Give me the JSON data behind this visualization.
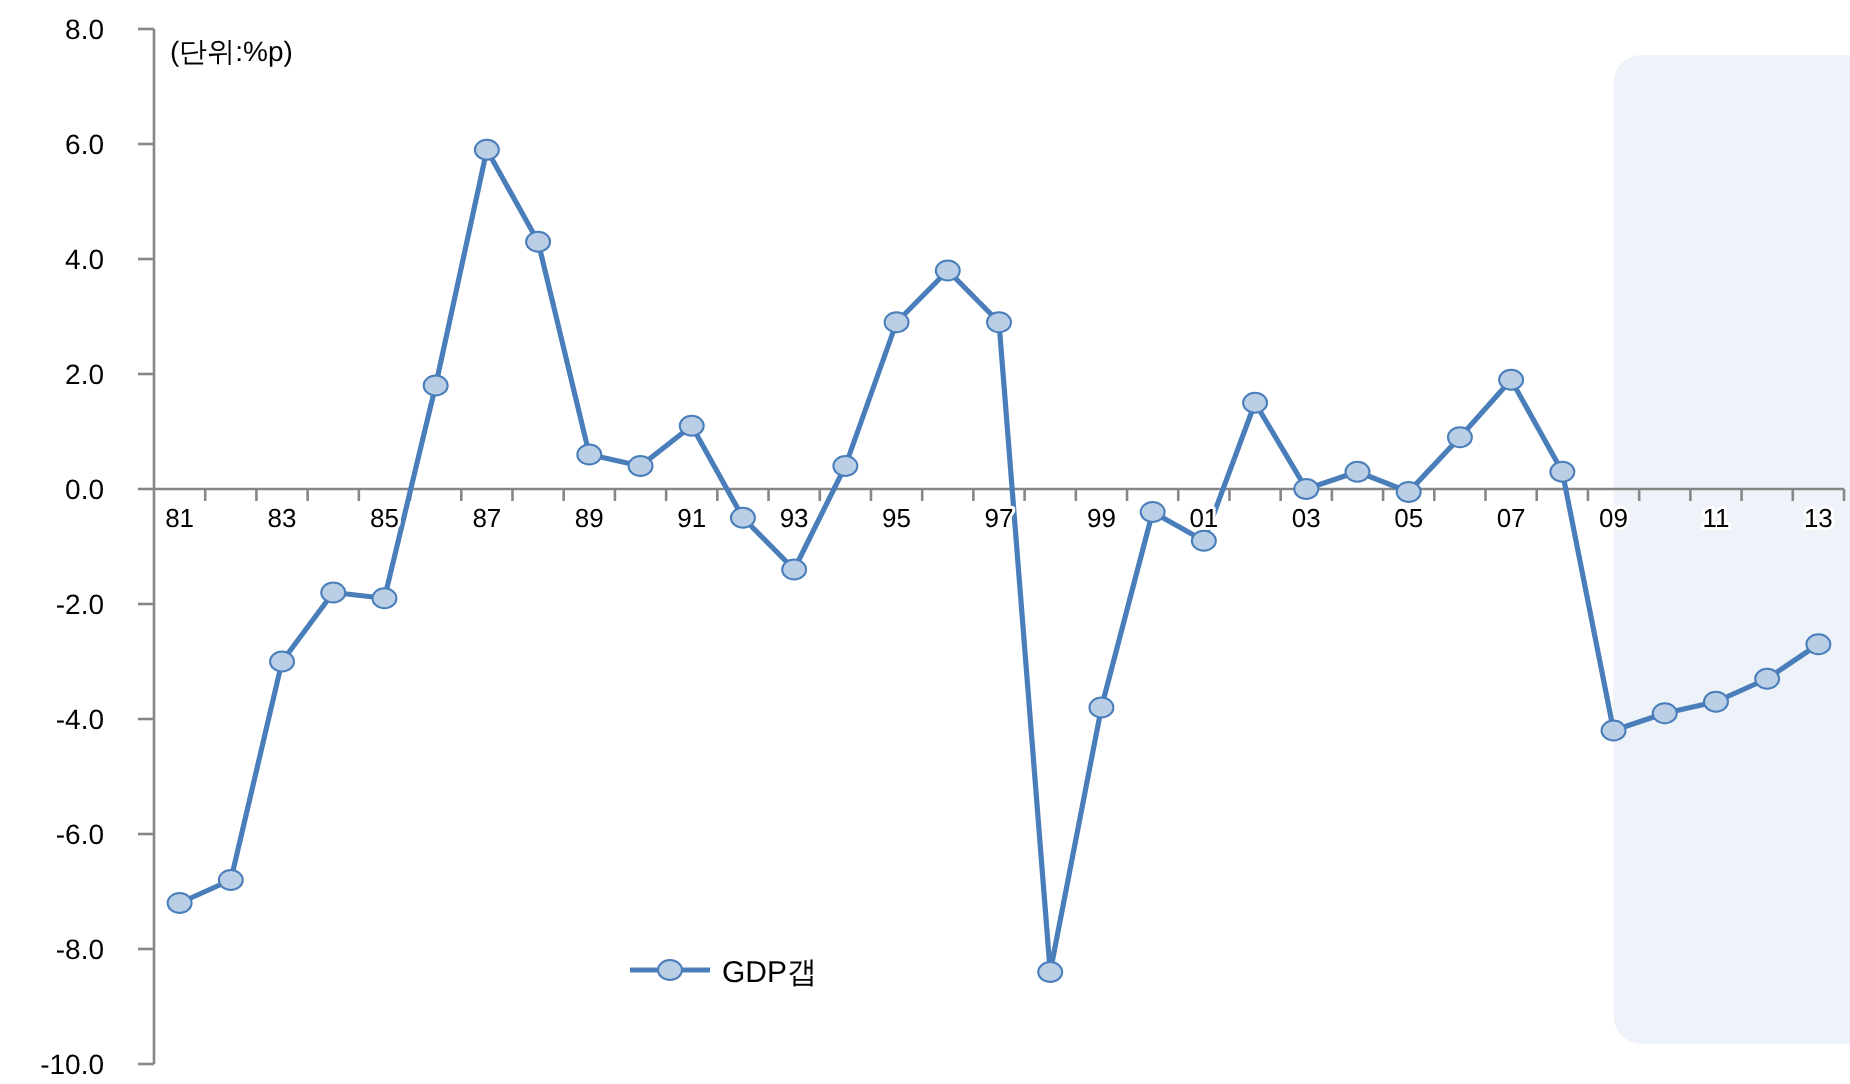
{
  "chart_data": {
    "type": "line",
    "ylabel": "(단위:%p)",
    "categories": [
      "81",
      null,
      "83",
      null,
      "85",
      null,
      "87",
      null,
      "89",
      null,
      "91",
      null,
      "93",
      null,
      "95",
      null,
      "97",
      null,
      "99",
      null,
      "01",
      null,
      "03",
      null,
      "05",
      null,
      "07",
      null,
      "09",
      null,
      "11",
      null,
      "13"
    ],
    "series": [
      {
        "name": "GDP갭",
        "color": "#4a7ebb",
        "values": [
          -7.2,
          -6.8,
          -3.0,
          -1.8,
          -1.9,
          1.8,
          5.9,
          4.3,
          0.6,
          0.4,
          1.1,
          -0.5,
          -1.4,
          0.4,
          2.9,
          3.8,
          2.9,
          -8.4,
          -3.8,
          -0.4,
          -0.9,
          1.5,
          0.0,
          0.3,
          -0.05,
          0.9,
          1.9,
          0.3,
          -4.2,
          -3.9,
          -3.7,
          -3.3,
          -2.7
        ]
      }
    ],
    "ylim": [
      -10,
      8
    ],
    "yticks": [
      {
        "value": 8,
        "label": "8.0"
      },
      {
        "value": 6,
        "label": "6.0"
      },
      {
        "value": 4,
        "label": "4.0"
      },
      {
        "value": 2,
        "label": "2.0"
      },
      {
        "value": 0,
        "label": "0.0"
      },
      {
        "value": -2,
        "label": "-2.0"
      },
      {
        "value": -4,
        "label": "-4.0"
      },
      {
        "value": -6,
        "label": "-6.0"
      },
      {
        "value": -8,
        "label": "-8.0"
      },
      {
        "value": -10,
        "label": "-10.0"
      }
    ],
    "marker": "circle",
    "line_style": "solid",
    "legend": "bottom left",
    "grid": false,
    "bands": [
      {
        "axis": "x",
        "from": "09",
        "to": "13",
        "color": "#eef3f9"
      }
    ]
  }
}
